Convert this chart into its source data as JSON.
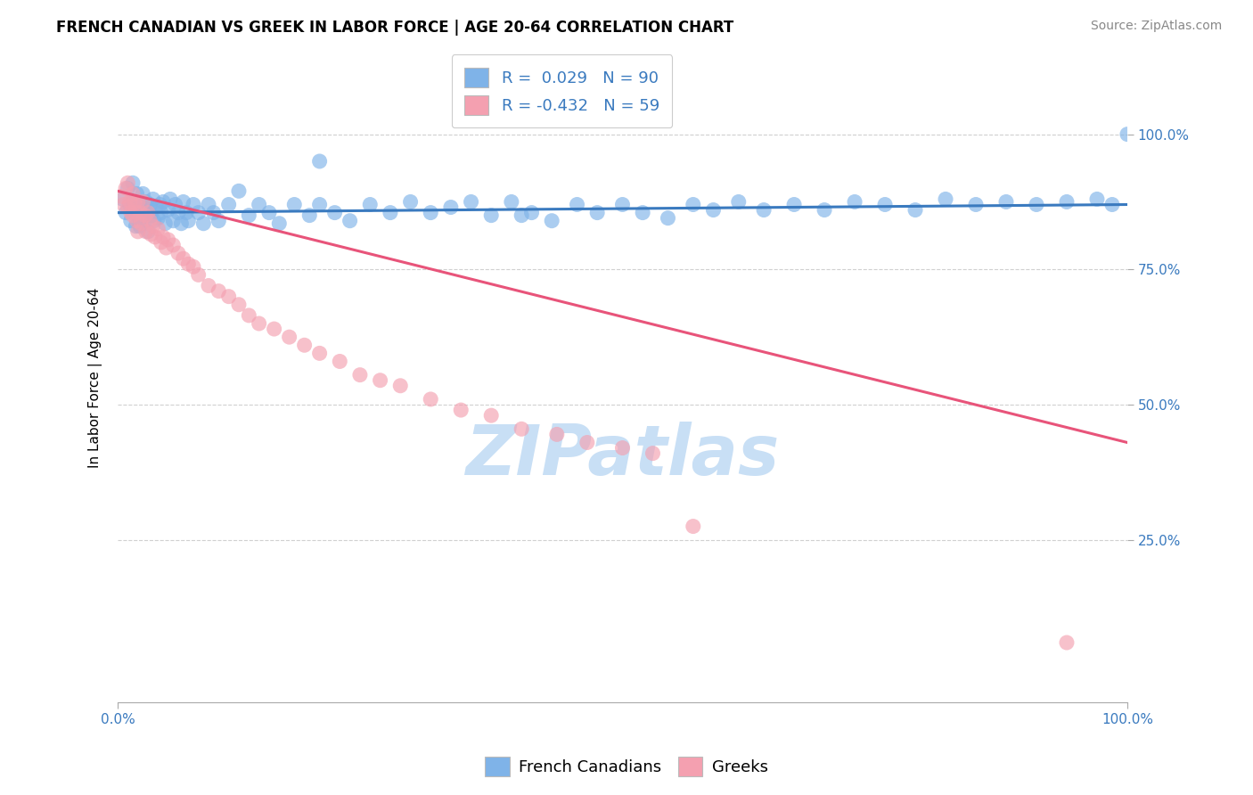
{
  "title": "FRENCH CANADIAN VS GREEK IN LABOR FORCE | AGE 20-64 CORRELATION CHART",
  "source": "Source: ZipAtlas.com",
  "ylabel": "In Labor Force | Age 20-64",
  "xlim": [
    0.0,
    1.0
  ],
  "ylim": [
    -0.05,
    1.15
  ],
  "blue_color": "#7fb3e8",
  "pink_color": "#f4a0b0",
  "blue_line_color": "#3a7abf",
  "pink_line_color": "#e8547a",
  "legend_blue_label": "R =  0.029   N = 90",
  "legend_pink_label": "R = -0.432   N = 59",
  "watermark": "ZIPatlas",
  "watermark_color": "#c8dff5",
  "background_color": "#ffffff",
  "grid_color": "#d0d0d0",
  "ytick_labels": [
    "25.0%",
    "50.0%",
    "75.0%",
    "100.0%"
  ],
  "ytick_values": [
    0.25,
    0.5,
    0.75,
    1.0
  ],
  "xtick_labels": [
    "0.0%",
    "100.0%"
  ],
  "xtick_values": [
    0.0,
    1.0
  ],
  "title_fontsize": 12,
  "source_fontsize": 10,
  "axis_label_fontsize": 11,
  "tick_fontsize": 11,
  "legend_fontsize": 13,
  "blue_line_x": [
    0.0,
    1.0
  ],
  "blue_line_y": [
    0.855,
    0.87
  ],
  "pink_line_x": [
    0.0,
    1.0
  ],
  "pink_line_y": [
    0.895,
    0.43
  ],
  "blue_scatter_x": [
    0.005,
    0.008,
    0.01,
    0.012,
    0.013,
    0.015,
    0.015,
    0.017,
    0.018,
    0.019,
    0.02,
    0.022,
    0.022,
    0.023,
    0.025,
    0.025,
    0.027,
    0.028,
    0.03,
    0.03,
    0.032,
    0.033,
    0.035,
    0.036,
    0.038,
    0.04,
    0.042,
    0.043,
    0.045,
    0.047,
    0.05,
    0.052,
    0.055,
    0.057,
    0.06,
    0.063,
    0.065,
    0.068,
    0.07,
    0.075,
    0.08,
    0.085,
    0.09,
    0.095,
    0.1,
    0.11,
    0.12,
    0.13,
    0.14,
    0.15,
    0.16,
    0.175,
    0.19,
    0.2,
    0.215,
    0.23,
    0.25,
    0.27,
    0.29,
    0.31,
    0.33,
    0.35,
    0.37,
    0.39,
    0.41,
    0.43,
    0.455,
    0.475,
    0.5,
    0.52,
    0.545,
    0.57,
    0.59,
    0.615,
    0.64,
    0.67,
    0.7,
    0.73,
    0.76,
    0.79,
    0.82,
    0.85,
    0.88,
    0.91,
    0.94,
    0.97,
    0.985,
    1.0,
    0.2,
    0.4
  ],
  "blue_scatter_y": [
    0.88,
    0.855,
    0.9,
    0.87,
    0.84,
    0.875,
    0.91,
    0.865,
    0.83,
    0.89,
    0.85,
    0.83,
    0.875,
    0.845,
    0.86,
    0.89,
    0.84,
    0.875,
    0.855,
    0.82,
    0.87,
    0.85,
    0.88,
    0.84,
    0.865,
    0.845,
    0.87,
    0.855,
    0.875,
    0.835,
    0.86,
    0.88,
    0.84,
    0.87,
    0.855,
    0.835,
    0.875,
    0.855,
    0.84,
    0.87,
    0.855,
    0.835,
    0.87,
    0.855,
    0.84,
    0.87,
    0.895,
    0.85,
    0.87,
    0.855,
    0.835,
    0.87,
    0.85,
    0.87,
    0.855,
    0.84,
    0.87,
    0.855,
    0.875,
    0.855,
    0.865,
    0.875,
    0.85,
    0.875,
    0.855,
    0.84,
    0.87,
    0.855,
    0.87,
    0.855,
    0.845,
    0.87,
    0.86,
    0.875,
    0.86,
    0.87,
    0.86,
    0.875,
    0.87,
    0.86,
    0.88,
    0.87,
    0.875,
    0.87,
    0.875,
    0.88,
    0.87,
    1.0,
    0.95,
    0.85
  ],
  "pink_scatter_x": [
    0.004,
    0.006,
    0.008,
    0.01,
    0.01,
    0.012,
    0.013,
    0.015,
    0.015,
    0.017,
    0.018,
    0.019,
    0.02,
    0.02,
    0.022,
    0.023,
    0.025,
    0.027,
    0.028,
    0.03,
    0.032,
    0.033,
    0.035,
    0.037,
    0.04,
    0.043,
    0.045,
    0.048,
    0.05,
    0.055,
    0.06,
    0.065,
    0.07,
    0.075,
    0.08,
    0.09,
    0.1,
    0.11,
    0.12,
    0.13,
    0.14,
    0.155,
    0.17,
    0.185,
    0.2,
    0.22,
    0.24,
    0.26,
    0.28,
    0.31,
    0.34,
    0.37,
    0.4,
    0.435,
    0.465,
    0.5,
    0.53,
    0.57,
    0.94
  ],
  "pink_scatter_y": [
    0.885,
    0.87,
    0.9,
    0.865,
    0.91,
    0.875,
    0.855,
    0.89,
    0.85,
    0.875,
    0.855,
    0.84,
    0.875,
    0.82,
    0.855,
    0.835,
    0.875,
    0.85,
    0.82,
    0.855,
    0.84,
    0.815,
    0.83,
    0.81,
    0.825,
    0.8,
    0.81,
    0.79,
    0.805,
    0.795,
    0.78,
    0.77,
    0.76,
    0.755,
    0.74,
    0.72,
    0.71,
    0.7,
    0.685,
    0.665,
    0.65,
    0.64,
    0.625,
    0.61,
    0.595,
    0.58,
    0.555,
    0.545,
    0.535,
    0.51,
    0.49,
    0.48,
    0.455,
    0.445,
    0.43,
    0.42,
    0.41,
    0.275,
    0.06
  ]
}
